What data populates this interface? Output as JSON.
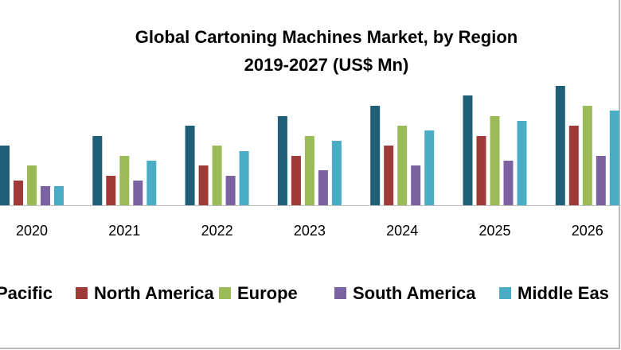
{
  "chart_data": {
    "type": "bar",
    "title": "Global Cartoning Machines Market, by Region",
    "subtitle": "2019-2027 (US$ Mn)",
    "categories": [
      "2020",
      "2021",
      "2022",
      "2023",
      "2024",
      "2025",
      "2026"
    ],
    "series": [
      {
        "name": "Pacific",
        "color": "#1f5f77",
        "values": [
          75,
          87,
          100,
          112,
          125,
          138,
          150
        ]
      },
      {
        "name": "North America",
        "color": "#9e3a37",
        "values": [
          31,
          37,
          50,
          62,
          75,
          87,
          100
        ]
      },
      {
        "name": "Europe",
        "color": "#9bbb59",
        "values": [
          50,
          62,
          75,
          87,
          100,
          112,
          125
        ]
      },
      {
        "name": "South America",
        "color": "#7b62a0",
        "values": [
          24,
          31,
          37,
          44,
          50,
          56,
          62
        ]
      },
      {
        "name": "Middle Eas",
        "color": "#4bacc6",
        "values": [
          24,
          56,
          68,
          81,
          94,
          106,
          119
        ]
      }
    ]
  }
}
